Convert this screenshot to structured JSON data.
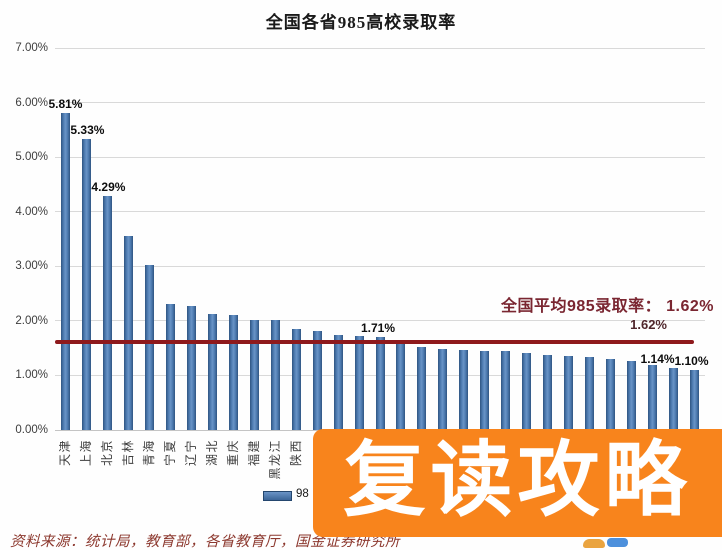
{
  "title": "全国各省985高校录取率",
  "chart_data": {
    "type": "bar",
    "title": "全国各省985高校录取率",
    "categories": [
      "天津",
      "上海",
      "北京",
      "吉林",
      "青海",
      "宁夏",
      "辽宁",
      "湖北",
      "重庆",
      "福建",
      "黑龙江",
      "陕西",
      "",
      "",
      "",
      "",
      "",
      "",
      "",
      "",
      "",
      "",
      "",
      "",
      "",
      "",
      "",
      "",
      "",
      "",
      ""
    ],
    "values": [
      5.81,
      5.33,
      4.29,
      3.55,
      3.02,
      2.31,
      2.28,
      2.12,
      2.1,
      2.02,
      2.01,
      1.85,
      1.82,
      1.75,
      1.72,
      1.71,
      1.64,
      1.53,
      1.48,
      1.46,
      1.45,
      1.44,
      1.42,
      1.38,
      1.35,
      1.33,
      1.3,
      1.26,
      1.19,
      1.14,
      1.1
    ],
    "bar_labels": [
      {
        "index": 0,
        "text": "5.81%",
        "dx": 0
      },
      {
        "index": 1,
        "text": "5.33%",
        "dx": 1
      },
      {
        "index": 2,
        "text": "4.29%",
        "dx": 1
      },
      {
        "index": 15,
        "text": "1.71%",
        "dx": -2
      },
      {
        "index": 29,
        "text": "1.14%",
        "dx": -16
      },
      {
        "index": 30,
        "text": "1.10%",
        "dx": -3
      }
    ],
    "y_ticks": [
      "7.00%",
      "6.00%",
      "5.00%",
      "4.00%",
      "3.00%",
      "2.00%",
      "1.00%",
      "0.00%"
    ],
    "ylim": [
      0,
      7
    ],
    "grid": true,
    "average_line": {
      "value": 1.62,
      "label": "1.62%",
      "annotation": "全国平均985录取率： 1.62%",
      "color": "#8e191c"
    },
    "legend": {
      "label": "98",
      "position": "bottom"
    },
    "colors": {
      "bar": "#4e7cb2",
      "bar_edge": "#2f5481",
      "grid": "#d9d9d9",
      "average_line": "#8e191c",
      "annotation_text": "#7a2631"
    }
  },
  "source_note": "资料来源：统计局，教育部，各省教育厅，国金证券研究所",
  "overlay": {
    "text": "复读攻略",
    "bg_color": "#f8841c",
    "text_color": "#ffffff"
  }
}
